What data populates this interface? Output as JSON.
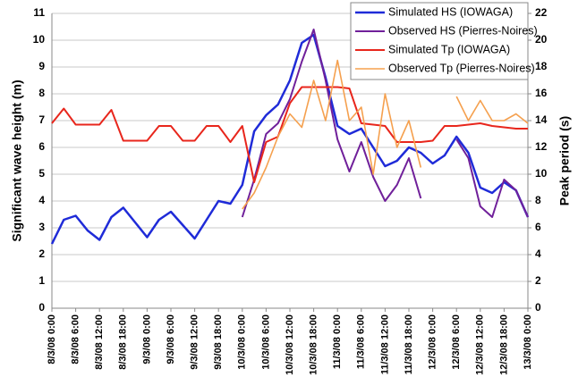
{
  "chart_data": {
    "type": "line",
    "ylabel": "Significant wave height (m)",
    "y2label": "Peak period (s)",
    "x": [
      0,
      3,
      6,
      9,
      12,
      15,
      18,
      21,
      24,
      27,
      30,
      33,
      36,
      39,
      42,
      45,
      48,
      51,
      54,
      57,
      60,
      63,
      66,
      69,
      72,
      75,
      78,
      81,
      84,
      87,
      90,
      93,
      96,
      99,
      102,
      105,
      108,
      111,
      114,
      117,
      120
    ],
    "xlim": [
      0,
      120
    ],
    "xticks": [
      {
        "value": 0,
        "label": "8/3/08 0:00"
      },
      {
        "value": 6,
        "label": "8/3/08 6:00"
      },
      {
        "value": 12,
        "label": "8/3/08 12:00"
      },
      {
        "value": 18,
        "label": "8/3/08 18:00"
      },
      {
        "value": 24,
        "label": "9/3/08 0:00"
      },
      {
        "value": 30,
        "label": "9/3/08 6:00"
      },
      {
        "value": 36,
        "label": "9/3/08 12:00"
      },
      {
        "value": 42,
        "label": "9/3/08 18:00"
      },
      {
        "value": 48,
        "label": "10/3/08 0:00"
      },
      {
        "value": 54,
        "label": "10/3/08 6:00"
      },
      {
        "value": 60,
        "label": "10/3/08 12:00"
      },
      {
        "value": 66,
        "label": "10/3/08 18:00"
      },
      {
        "value": 72,
        "label": "11/3/08 0:00"
      },
      {
        "value": 78,
        "label": "11/3/08 6:00"
      },
      {
        "value": 84,
        "label": "11/3/08 12:00"
      },
      {
        "value": 90,
        "label": "11/3/08 18:00"
      },
      {
        "value": 96,
        "label": "12/3/08 0:00"
      },
      {
        "value": 102,
        "label": "12/3/08 6:00"
      },
      {
        "value": 108,
        "label": "12/3/08 12:00"
      },
      {
        "value": 114,
        "label": "12/3/08 18:00"
      },
      {
        "value": 120,
        "label": "13/3/08 0:00"
      }
    ],
    "ylim": [
      0,
      11
    ],
    "yticks": [
      0,
      1,
      2,
      3,
      4,
      5,
      6,
      7,
      8,
      9,
      10,
      11
    ],
    "y2lim": [
      0,
      22
    ],
    "y2ticks": [
      0,
      2,
      4,
      6,
      8,
      10,
      12,
      14,
      16,
      18,
      20,
      22
    ],
    "grid": true,
    "legend": "upper right",
    "series": [
      {
        "name": "Simulated HS (IOWAGA)",
        "color": "#1f2bd8",
        "width": 2.5,
        "values": [
          2.4,
          3.3,
          3.45,
          2.9,
          2.55,
          3.4,
          3.75,
          3.2,
          2.65,
          3.3,
          3.6,
          3.1,
          2.6,
          3.3,
          4.0,
          3.9,
          4.6,
          6.6,
          7.2,
          7.6,
          8.5,
          9.9,
          10.2,
          8.6,
          6.8,
          6.5,
          6.7,
          6.0,
          5.3,
          5.5,
          6.0,
          5.8,
          5.4,
          5.7,
          6.4,
          5.8,
          4.5,
          4.3,
          4.7,
          4.4,
          3.4
        ]
      },
      {
        "name": "Observed HS (Pierres-Noires)",
        "color": "#70209a",
        "width": 2,
        "values": [
          null,
          null,
          null,
          null,
          null,
          null,
          null,
          null,
          null,
          null,
          null,
          null,
          null,
          null,
          null,
          null,
          3.4,
          4.8,
          6.5,
          6.9,
          7.8,
          9.2,
          10.4,
          8.5,
          6.3,
          5.1,
          6.2,
          4.9,
          4.0,
          4.6,
          5.6,
          4.1,
          null,
          null,
          6.3,
          5.6,
          3.8,
          3.4,
          4.8,
          4.4,
          3.4
        ]
      },
      {
        "name": "Simulated Tp (IOWAGA)",
        "color": "#e8261c",
        "width": 2,
        "axis": "y2",
        "values": [
          13.8,
          14.9,
          13.7,
          13.7,
          13.7,
          14.8,
          12.5,
          12.5,
          12.5,
          13.6,
          13.6,
          12.5,
          12.5,
          13.6,
          13.6,
          12.4,
          13.6,
          9.4,
          12.4,
          12.8,
          15.3,
          16.5,
          16.5,
          16.5,
          16.5,
          16.4,
          13.8,
          13.7,
          13.6,
          12.4,
          12.4,
          12.4,
          12.5,
          13.6,
          13.6,
          13.7,
          13.8,
          13.6,
          13.5,
          13.4,
          13.4
        ]
      },
      {
        "name": "Observed Tp (Pierres-Noires)",
        "color": "#f5a04e",
        "width": 1.6,
        "axis": "y2",
        "values": [
          null,
          null,
          null,
          null,
          null,
          null,
          null,
          null,
          null,
          null,
          null,
          null,
          null,
          null,
          null,
          null,
          7.4,
          8.6,
          10.5,
          12.8,
          14.5,
          13.5,
          17,
          14,
          18.5,
          14,
          15,
          10,
          16,
          12,
          14,
          10.5,
          null,
          null,
          15.8,
          14,
          15.5,
          14,
          14,
          14.5,
          13.8
        ]
      }
    ]
  }
}
